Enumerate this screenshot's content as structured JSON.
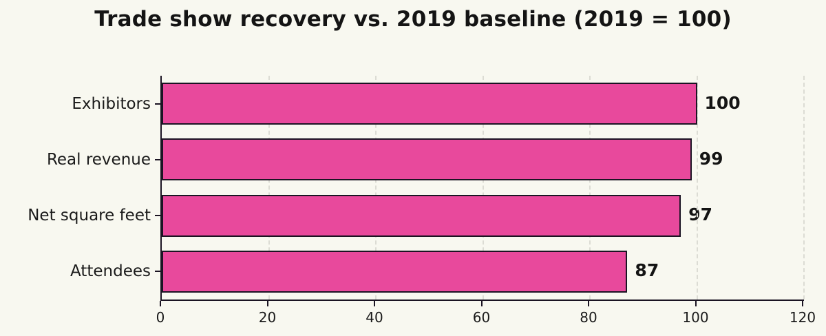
{
  "title": "Trade show recovery vs. 2019 baseline (2019 = 100)",
  "chart_data": {
    "type": "bar",
    "orientation": "horizontal",
    "title": "Trade show recovery vs. 2019 baseline (2019 = 100)",
    "categories": [
      "Exhibitors",
      "Real revenue",
      "Net square feet",
      "Attendees"
    ],
    "values": [
      100,
      99,
      97,
      87
    ],
    "value_labels": [
      "100",
      "99",
      "97",
      "87"
    ],
    "xlabel": "",
    "ylabel": "",
    "xlim": [
      0,
      120
    ],
    "xticks": [
      0,
      20,
      40,
      60,
      80,
      100,
      120
    ],
    "grid": "vertical-dashed",
    "legend": "none",
    "colors": {
      "bar_fill": "#e8499c",
      "bar_edge": "#1b1423",
      "background": "#f8f8f0",
      "gridline": "#dcdcd4",
      "text": "#141414"
    }
  }
}
